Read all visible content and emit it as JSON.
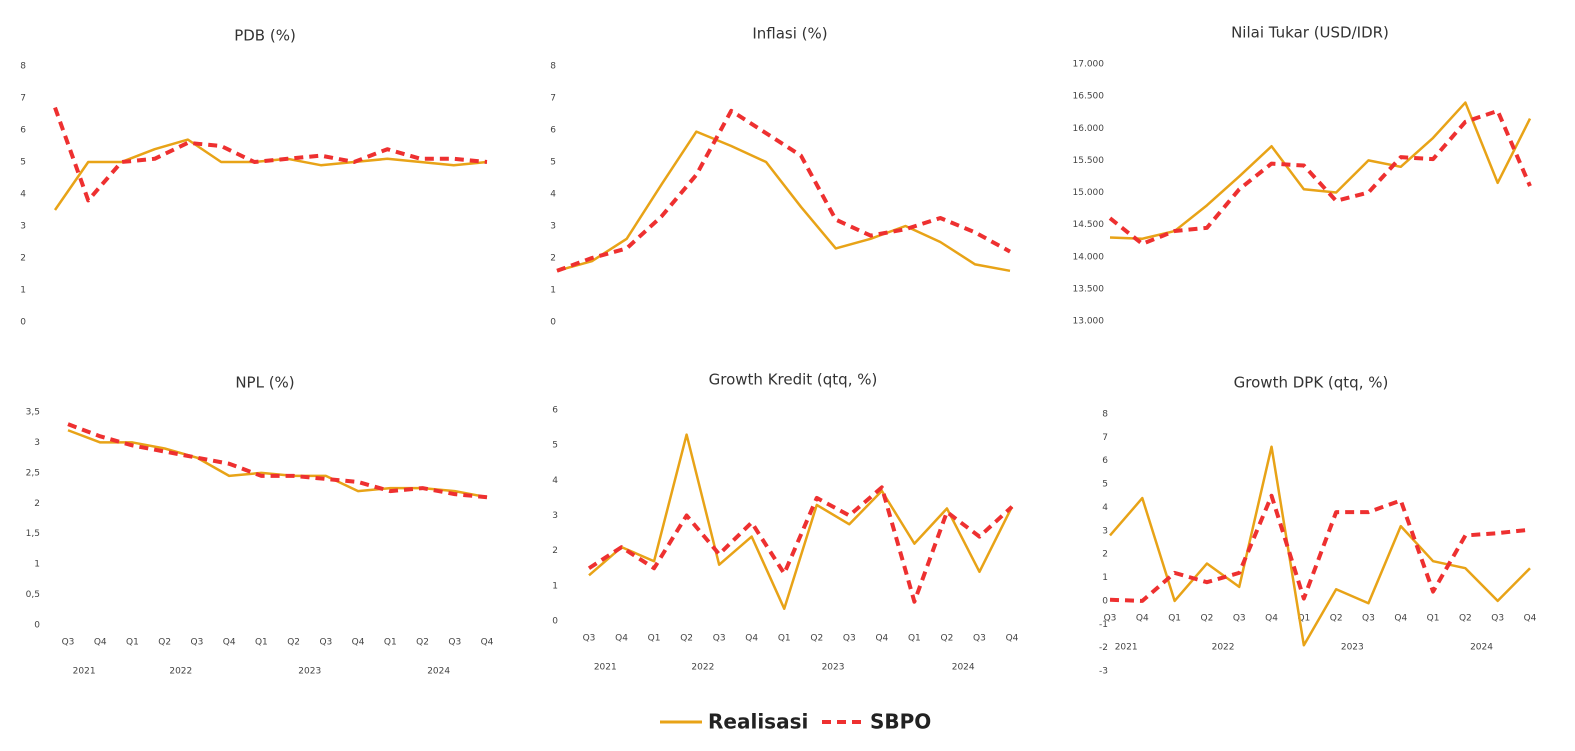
{
  "chart_data": [
    {
      "type": "line",
      "title": "PDB (%)",
      "ylim": [
        0,
        8
      ],
      "yticks": [
        0,
        1,
        2,
        3,
        4,
        5,
        6,
        7,
        8
      ],
      "series": [
        {
          "name": "Realisasi",
          "color": "#E8A317",
          "values": [
            3.5,
            5.0,
            5.0,
            5.4,
            5.7,
            5.0,
            5.0,
            5.1,
            4.9,
            5.0,
            5.1,
            5.0,
            4.9,
            5.0
          ]
        },
        {
          "name": "SBPO",
          "color": "#EE3030",
          "dashed": true,
          "values": [
            6.7,
            3.8,
            5.0,
            5.1,
            5.6,
            5.5,
            5.0,
            5.1,
            5.2,
            5.0,
            5.4,
            5.1,
            5.1,
            5.0
          ]
        }
      ]
    },
    {
      "type": "line",
      "title": "Inflasi (%)",
      "ylim": [
        0,
        8
      ],
      "yticks": [
        0,
        1,
        2,
        3,
        4,
        5,
        6,
        7,
        8
      ],
      "series": [
        {
          "name": "Realisasi",
          "color": "#E8A317",
          "values": [
            1.6,
            1.9,
            2.6,
            4.3,
            5.95,
            5.5,
            5.0,
            3.6,
            2.3,
            2.6,
            3.0,
            2.5,
            1.8,
            1.6
          ]
        },
        {
          "name": "SBPO",
          "color": "#EE3030",
          "dashed": true,
          "values": [
            1.6,
            2.0,
            2.3,
            3.3,
            4.6,
            6.6,
            5.9,
            5.2,
            3.2,
            2.7,
            2.9,
            3.25,
            2.8,
            2.2
          ]
        }
      ]
    },
    {
      "type": "line",
      "title": "Nilai Tukar (USD/IDR)",
      "ylim": [
        13000,
        17000
      ],
      "yticks": [
        {
          "value": 13000,
          "label": "13.000"
        },
        {
          "value": 13500,
          "label": "13.500"
        },
        {
          "value": 14000,
          "label": "14.000"
        },
        {
          "value": 14500,
          "label": "14.500"
        },
        {
          "value": 15000,
          "label": "15.000"
        },
        {
          "value": 15500,
          "label": "15.500"
        },
        {
          "value": 16000,
          "label": "16.000"
        },
        {
          "value": 16500,
          "label": "16.500"
        },
        {
          "value": 17000,
          "label": "17.000"
        }
      ],
      "series": [
        {
          "name": "Realisasi",
          "color": "#E8A317",
          "values": [
            14300,
            14280,
            14400,
            14800,
            15250,
            15720,
            15050,
            15000,
            15500,
            15400,
            15850,
            16400,
            15150,
            16150
          ]
        },
        {
          "name": "SBPO",
          "color": "#EE3030",
          "dashed": true,
          "values": [
            14600,
            14200,
            14400,
            14450,
            15050,
            15450,
            15420,
            14870,
            15000,
            15550,
            15520,
            16100,
            16270,
            15100
          ]
        }
      ]
    },
    {
      "type": "line",
      "title": "NPL (%)",
      "ylim": [
        0,
        3.5
      ],
      "yticks": [
        0,
        {
          "value": 0.5,
          "label": "0,5"
        },
        1,
        {
          "value": 1.5,
          "label": "1,5"
        },
        2,
        {
          "value": 2.5,
          "label": "2,5"
        },
        3,
        {
          "value": 3.5,
          "label": "3,5"
        }
      ],
      "categories": [
        "Q3",
        "Q4",
        "Q1",
        "Q2",
        "Q3",
        "Q4",
        "Q1",
        "Q2",
        "Q3",
        "Q4",
        "Q1",
        "Q2",
        "Q3",
        "Q4"
      ],
      "groups": [
        "2021",
        "2022",
        "2023",
        "2024"
      ],
      "group_sizes": [
        2,
        4,
        4,
        4
      ],
      "series": [
        {
          "name": "Realisasi",
          "color": "#E8A317",
          "values": [
            3.2,
            3.0,
            3.0,
            2.9,
            2.75,
            2.45,
            2.5,
            2.45,
            2.45,
            2.2,
            2.25,
            2.25,
            2.2,
            2.1
          ]
        },
        {
          "name": "SBPO",
          "color": "#EE3030",
          "dashed": true,
          "values": [
            3.3,
            3.1,
            2.95,
            2.85,
            2.75,
            2.65,
            2.45,
            2.45,
            2.4,
            2.35,
            2.2,
            2.25,
            2.15,
            2.1
          ]
        }
      ]
    },
    {
      "type": "line",
      "title": "Growth Kredit (qtq, %)",
      "ylim": [
        0,
        6
      ],
      "yticks": [
        0,
        1,
        2,
        3,
        4,
        5,
        6
      ],
      "categories": [
        "Q3",
        "Q4",
        "Q1",
        "Q2",
        "Q3",
        "Q4",
        "Q1",
        "Q2",
        "Q3",
        "Q4",
        "Q1",
        "Q2",
        "Q3",
        "Q4"
      ],
      "groups": [
        "2021",
        "2022",
        "2023",
        "2024"
      ],
      "group_sizes": [
        2,
        4,
        4,
        4
      ],
      "series": [
        {
          "name": "Realisasi",
          "color": "#E8A317",
          "values": [
            1.3,
            2.1,
            1.7,
            5.3,
            1.6,
            2.4,
            0.35,
            3.3,
            2.75,
            3.7,
            2.2,
            3.2,
            1.4,
            3.25
          ]
        },
        {
          "name": "SBPO",
          "color": "#EE3030",
          "dashed": true,
          "values": [
            1.5,
            2.1,
            1.5,
            3.0,
            1.9,
            2.8,
            1.35,
            3.5,
            3.0,
            3.8,
            0.55,
            3.1,
            2.4,
            3.25
          ]
        }
      ]
    },
    {
      "type": "line",
      "title": "Growth DPK (qtq, %)",
      "ylim": [
        -3,
        8
      ],
      "yticks": [
        -3,
        -2,
        -1,
        0,
        1,
        2,
        3,
        4,
        5,
        6,
        7,
        8
      ],
      "categories": [
        "Q3",
        "Q4",
        "Q1",
        "Q2",
        "Q3",
        "Q4",
        "Q1",
        "Q2",
        "Q3",
        "Q4",
        "Q1",
        "Q2",
        "Q3",
        "Q4"
      ],
      "groups": [
        "2021",
        "2022",
        "2023",
        "2024"
      ],
      "group_sizes": [
        2,
        4,
        4,
        4
      ],
      "series": [
        {
          "name": "Realisasi",
          "color": "#E8A317",
          "values": [
            2.8,
            4.4,
            0.0,
            1.6,
            0.6,
            6.6,
            -1.9,
            0.5,
            -0.1,
            3.2,
            1.7,
            1.4,
            0.0,
            1.4
          ]
        },
        {
          "name": "SBPO",
          "color": "#EE3030",
          "dashed": true,
          "values": [
            0.05,
            0.0,
            1.2,
            0.8,
            1.2,
            4.5,
            0.1,
            3.8,
            3.8,
            4.3,
            0.4,
            2.8,
            2.9,
            3.05
          ]
        }
      ]
    }
  ]
}
